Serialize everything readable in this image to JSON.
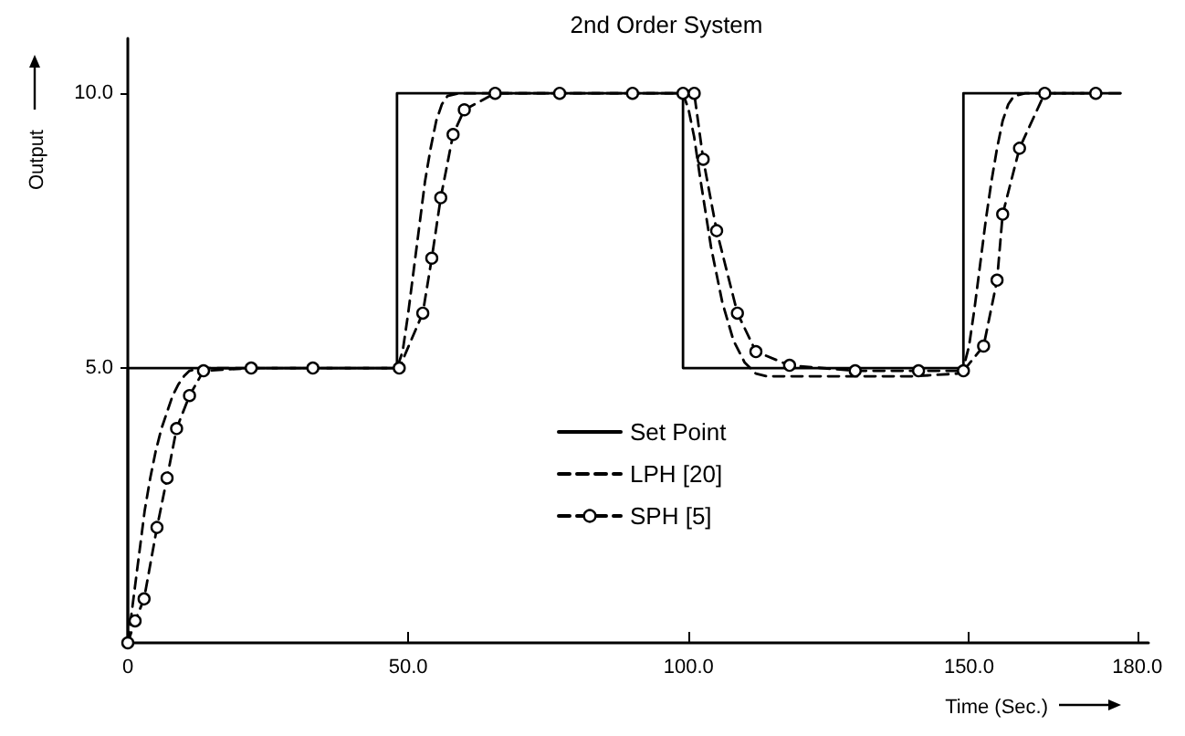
{
  "chart_data": {
    "type": "line",
    "title": "2nd Order System",
    "xlabel": "Time (Sec.)",
    "ylabel": "Output",
    "xlim": [
      0,
      182
    ],
    "ylim": [
      0,
      11
    ],
    "xticks": [
      0,
      {
        "value": 50,
        "label": "50.0"
      },
      {
        "value": 100,
        "label": "100.0"
      },
      {
        "value": 150,
        "label": "150.0"
      },
      {
        "value": 180,
        "label": "180.0"
      }
    ],
    "yticks": [
      {
        "value": 5,
        "label": "5.0"
      },
      {
        "value": 10,
        "label": "10.0"
      }
    ],
    "grid": false,
    "legend": "center",
    "series": [
      {
        "name": "Set Point",
        "color": "#000000",
        "line_style": "solid",
        "marker": "none",
        "x": [
          0,
          0,
          48,
          48,
          99,
          99,
          149,
          149,
          177
        ],
        "values": [
          0,
          5,
          5,
          10,
          10,
          5,
          5,
          10,
          10
        ]
      },
      {
        "name": "LPH [20]",
        "color": "#000000",
        "line_style": "dashed",
        "marker": "none",
        "x": [
          0,
          1,
          2,
          3,
          4,
          5,
          6,
          7,
          8,
          9,
          10,
          11,
          13,
          48,
          49,
          50,
          51,
          52,
          53,
          54,
          55,
          56,
          57,
          59,
          61,
          99,
          100,
          101,
          102,
          104,
          106,
          108,
          110,
          112,
          114,
          116,
          120,
          130,
          140,
          148,
          149,
          150,
          151,
          152,
          153,
          154,
          155,
          156,
          157,
          158,
          160,
          162,
          177
        ],
        "values": [
          0,
          0.8,
          1.6,
          2.4,
          3.0,
          3.5,
          3.9,
          4.2,
          4.5,
          4.7,
          4.85,
          4.95,
          5,
          5,
          5.3,
          6.0,
          6.8,
          7.6,
          8.4,
          9.0,
          9.5,
          9.8,
          9.95,
          10,
          10,
          10,
          9.7,
          9.2,
          8.5,
          7.2,
          6.2,
          5.5,
          5.1,
          4.9,
          4.85,
          4.85,
          4.85,
          4.85,
          4.85,
          4.9,
          5.0,
          5.4,
          6.1,
          6.9,
          7.7,
          8.4,
          9.0,
          9.5,
          9.8,
          9.95,
          10,
          10,
          10
        ]
      },
      {
        "name": "SPH [5]",
        "color": "#000000",
        "line_style": "dashed",
        "marker": "circle",
        "x": [
          0,
          1.3,
          2.9,
          5.2,
          7,
          8.7,
          11,
          13.5,
          22,
          33,
          48.4,
          52.6,
          54.2,
          55.8,
          58,
          60,
          65.5,
          77,
          90,
          99,
          101,
          102.6,
          105,
          108.7,
          112,
          118,
          129.7,
          141,
          149,
          152.6,
          155,
          156,
          159,
          163.5,
          172.6
        ],
        "values": [
          0,
          0.4,
          0.8,
          2.1,
          3.0,
          3.9,
          4.5,
          4.95,
          5,
          5,
          5,
          6.0,
          7.0,
          8.1,
          9.25,
          9.7,
          10,
          10,
          10,
          10,
          10,
          8.8,
          7.5,
          6.0,
          5.3,
          5.05,
          4.95,
          4.95,
          4.95,
          5.4,
          6.6,
          7.8,
          9.0,
          10,
          10
        ]
      }
    ]
  }
}
